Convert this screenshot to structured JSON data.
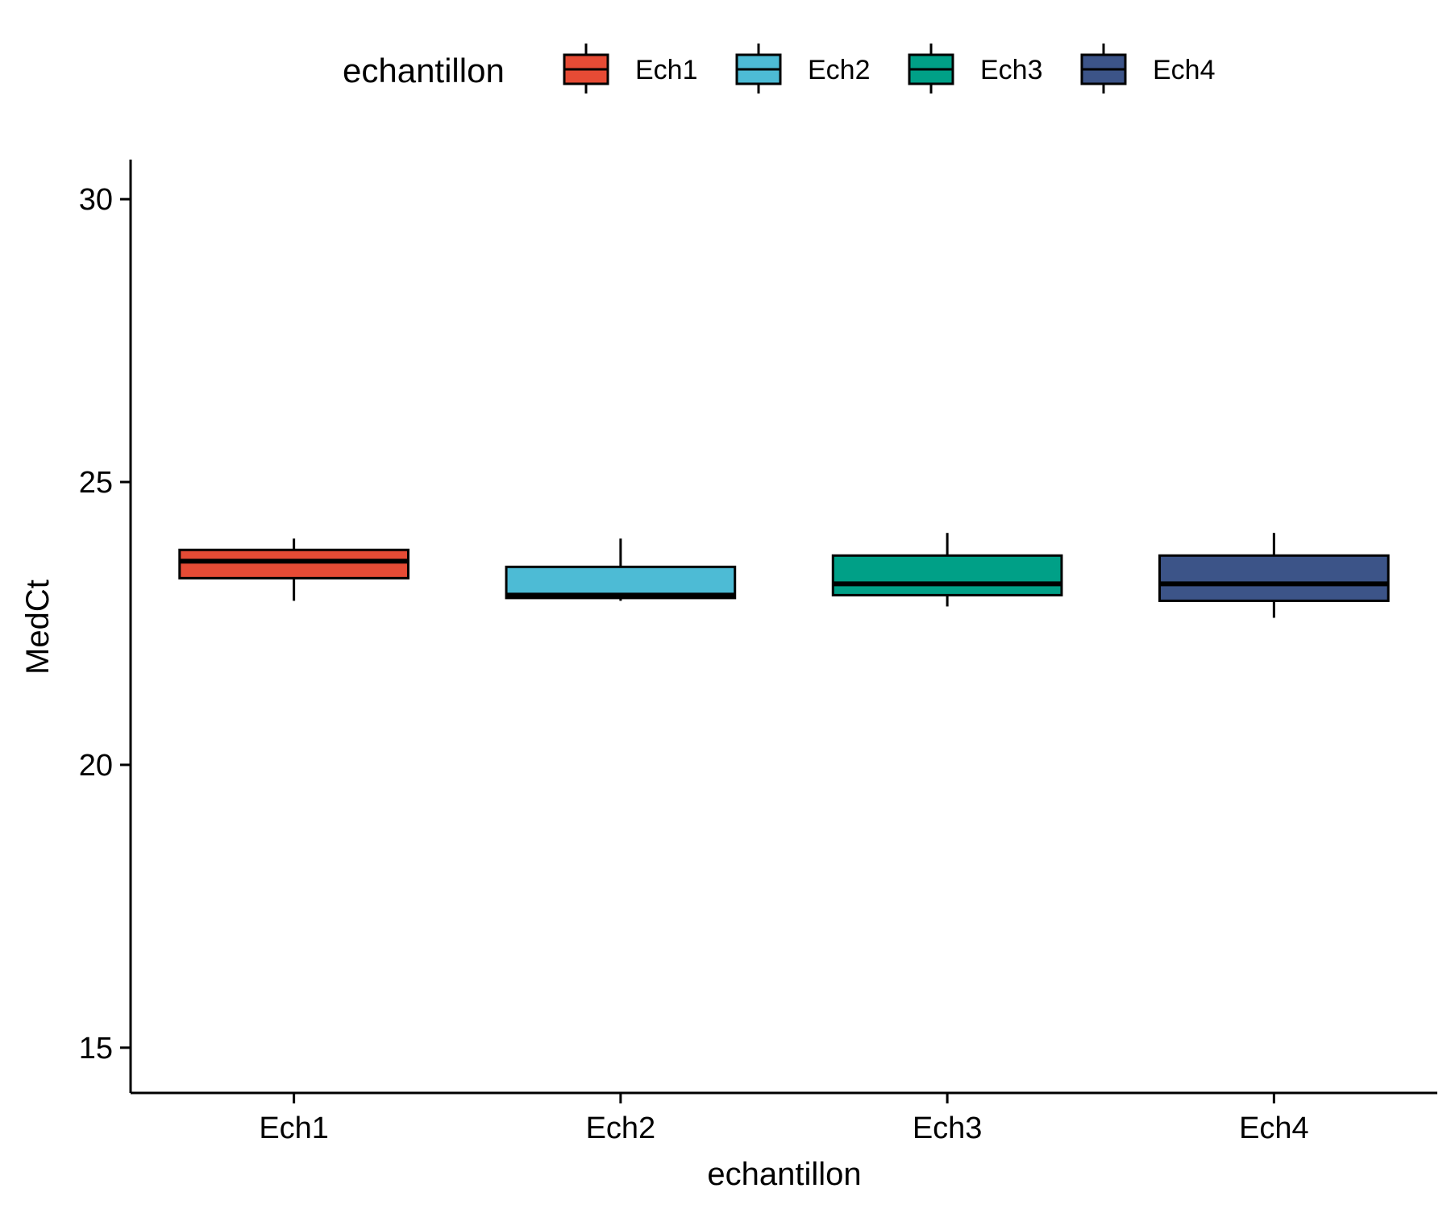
{
  "chart_data": {
    "type": "boxplot",
    "title": "",
    "xlabel": "echantillon",
    "ylabel": "MedCt",
    "ylim": [
      14.2,
      30.7
    ],
    "yticks": [
      15,
      20,
      25,
      30
    ],
    "grid": false,
    "legend": {
      "title": "echantillon",
      "position": "top",
      "entries": [
        "Ech1",
        "Ech2",
        "Ech3",
        "Ech4"
      ]
    },
    "categories": [
      "Ech1",
      "Ech2",
      "Ech3",
      "Ech4"
    ],
    "series": [
      {
        "name": "Ech1",
        "color": "#E64B35",
        "min": 22.9,
        "q1": 23.3,
        "median": 23.6,
        "q3": 23.8,
        "max": 24.0
      },
      {
        "name": "Ech2",
        "color": "#4DBBD5",
        "min": 22.9,
        "q1": 22.95,
        "median": 23.0,
        "q3": 23.5,
        "max": 24.0
      },
      {
        "name": "Ech3",
        "color": "#00A087",
        "min": 22.8,
        "q1": 23.0,
        "median": 23.2,
        "q3": 23.7,
        "max": 24.1
      },
      {
        "name": "Ech4",
        "color": "#3C5488",
        "min": 22.6,
        "q1": 22.9,
        "median": 23.2,
        "q3": 23.7,
        "max": 24.1
      }
    ]
  }
}
